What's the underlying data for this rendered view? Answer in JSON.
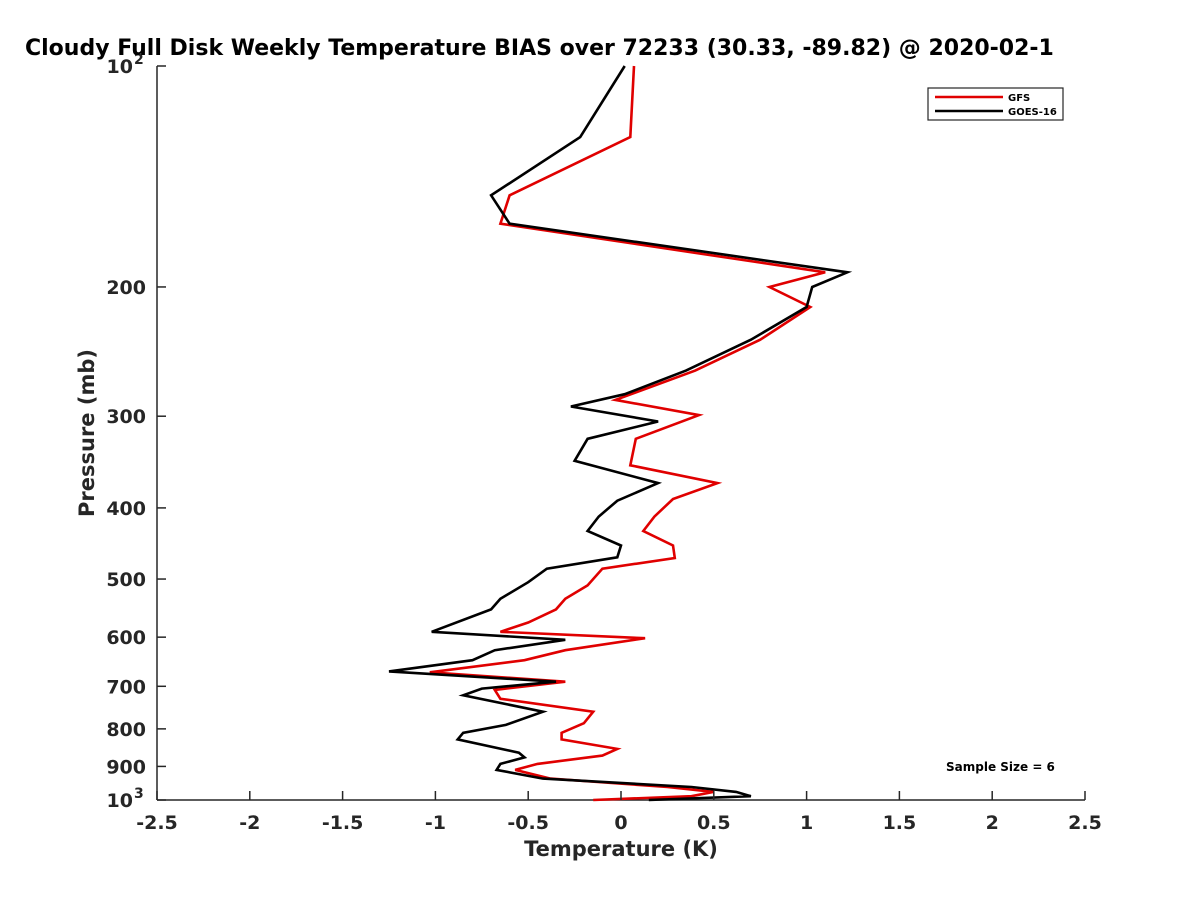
{
  "chart_data": {
    "type": "line",
    "title": "Cloudy Full Disk Weekly Temperature BIAS over 72233 (30.33, -89.82) @ 2020-02-1",
    "xlabel": "Temperature (K)",
    "ylabel": "Pressure (mb)",
    "xlim": [
      -2.5,
      2.5
    ],
    "ylim": [
      100,
      1000
    ],
    "y_scale": "log",
    "y_reversed": true,
    "grid": false,
    "legend_position": "top-right",
    "x_ticks": [
      "-2.5",
      "-2",
      "-1.5",
      "-1",
      "-0.5",
      "0",
      "0.5",
      "1",
      "1.5",
      "2",
      "2.5"
    ],
    "y_ticks": [
      {
        "value": 100,
        "label": "10",
        "sup": "2"
      },
      {
        "value": 200,
        "label": "200",
        "sup": ""
      },
      {
        "value": 300,
        "label": "300",
        "sup": ""
      },
      {
        "value": 400,
        "label": "400",
        "sup": ""
      },
      {
        "value": 500,
        "label": "500",
        "sup": ""
      },
      {
        "value": 600,
        "label": "600",
        "sup": ""
      },
      {
        "value": 700,
        "label": "700",
        "sup": ""
      },
      {
        "value": 800,
        "label": "800",
        "sup": ""
      },
      {
        "value": 900,
        "label": "900",
        "sup": ""
      },
      {
        "value": 1000,
        "label": "10",
        "sup": "3"
      }
    ],
    "annotation": "Sample Size = 6",
    "series": [
      {
        "name": "GFS",
        "color": "#e00000",
        "points": [
          [
            0.07,
            100
          ],
          [
            0.05,
            125
          ],
          [
            -0.6,
            150
          ],
          [
            -0.65,
            164
          ],
          [
            1.1,
            191
          ],
          [
            0.8,
            200
          ],
          [
            1.02,
            213
          ],
          [
            0.75,
            236
          ],
          [
            0.4,
            260
          ],
          [
            -0.03,
            285
          ],
          [
            0.42,
            299
          ],
          [
            0.08,
            322
          ],
          [
            0.05,
            350
          ],
          [
            0.52,
            370
          ],
          [
            0.28,
            389
          ],
          [
            0.18,
            411
          ],
          [
            0.12,
            430
          ],
          [
            0.28,
            450
          ],
          [
            0.29,
            468
          ],
          [
            -0.1,
            484
          ],
          [
            -0.18,
            510
          ],
          [
            -0.3,
            532
          ],
          [
            -0.35,
            550
          ],
          [
            -0.5,
            573
          ],
          [
            -0.65,
            590
          ],
          [
            0.13,
            602
          ],
          [
            -0.3,
            625
          ],
          [
            -0.52,
            645
          ],
          [
            -1.03,
            670
          ],
          [
            -0.3,
            690
          ],
          [
            -0.68,
            708
          ],
          [
            -0.65,
            728
          ],
          [
            -0.15,
            758
          ],
          [
            -0.2,
            786
          ],
          [
            -0.32,
            810
          ],
          [
            -0.32,
            827
          ],
          [
            -0.02,
            852
          ],
          [
            -0.1,
            870
          ],
          [
            -0.45,
            893
          ],
          [
            -0.57,
            910
          ],
          [
            -0.38,
            935
          ],
          [
            0.25,
            960
          ],
          [
            0.5,
            975
          ],
          [
            0.38,
            988
          ],
          [
            -0.15,
            1000
          ]
        ]
      },
      {
        "name": "GOES-16",
        "color": "#000000",
        "points": [
          [
            0.02,
            100
          ],
          [
            -0.22,
            125
          ],
          [
            -0.7,
            150
          ],
          [
            -0.6,
            164
          ],
          [
            1.22,
            191
          ],
          [
            1.03,
            200
          ],
          [
            1.0,
            213
          ],
          [
            0.7,
            236
          ],
          [
            0.35,
            260
          ],
          [
            0.02,
            280
          ],
          [
            -0.27,
            291
          ],
          [
            0.2,
            305
          ],
          [
            -0.18,
            322
          ],
          [
            -0.25,
            345
          ],
          [
            0.2,
            370
          ],
          [
            -0.02,
            391
          ],
          [
            -0.12,
            411
          ],
          [
            -0.18,
            430
          ],
          [
            0.0,
            450
          ],
          [
            -0.02,
            467
          ],
          [
            -0.4,
            484
          ],
          [
            -0.5,
            505
          ],
          [
            -0.65,
            532
          ],
          [
            -0.7,
            550
          ],
          [
            -1.02,
            590
          ],
          [
            -0.3,
            605
          ],
          [
            -0.68,
            625
          ],
          [
            -0.8,
            645
          ],
          [
            -1.25,
            668
          ],
          [
            -0.35,
            690
          ],
          [
            -0.75,
            705
          ],
          [
            -0.85,
            720
          ],
          [
            -0.42,
            758
          ],
          [
            -0.62,
            790
          ],
          [
            -0.85,
            810
          ],
          [
            -0.88,
            827
          ],
          [
            -0.55,
            862
          ],
          [
            -0.52,
            875
          ],
          [
            -0.65,
            893
          ],
          [
            -0.67,
            910
          ],
          [
            -0.42,
            935
          ],
          [
            0.38,
            960
          ],
          [
            0.62,
            975
          ],
          [
            0.7,
            988
          ],
          [
            0.15,
            1000
          ]
        ]
      }
    ]
  }
}
